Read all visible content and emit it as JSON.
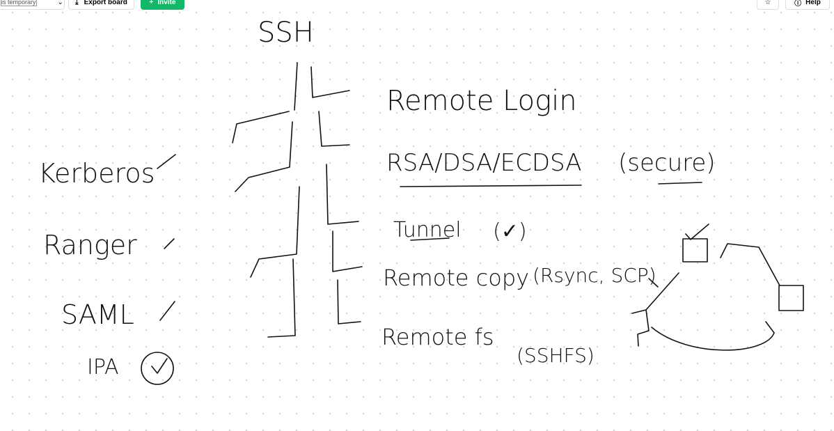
{
  "toolbar": {
    "notice": "is temporary",
    "export_button": "Export board",
    "invite_button": "Invite",
    "help_button": "Help"
  },
  "board": {
    "title": "SSH",
    "branches": [
      "Remote Login",
      "RSA/DSA/ECDSA",
      "(secure)",
      "Tunnel",
      "(✓)",
      "Remote copy",
      "(Rsync, SCP)",
      "Remote fs",
      "(SSHFS)"
    ],
    "auth": [
      "Kerberos",
      "Ranger",
      "SAML",
      "IPA"
    ]
  }
}
